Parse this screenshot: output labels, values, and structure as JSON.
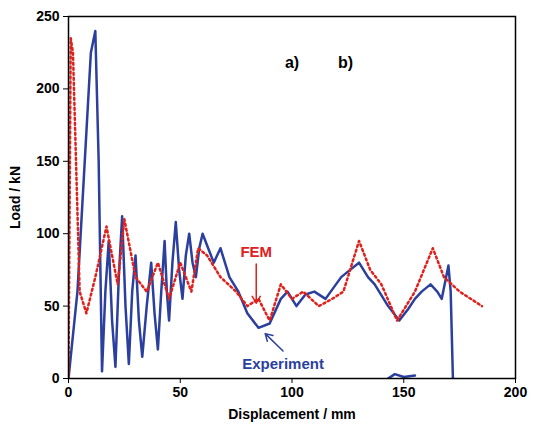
{
  "chart_data": {
    "type": "line",
    "x_label": "Displacement / mm",
    "y_label": "Load / kN",
    "xlim": [
      0,
      200
    ],
    "ylim": [
      0,
      250
    ],
    "xticks": [
      0,
      50,
      100,
      150,
      200
    ],
    "yticks": [
      0,
      50,
      100,
      150,
      200,
      250
    ],
    "grid": false,
    "series": [
      {
        "name": "Experiment",
        "color": "#2b3f9e",
        "line_style": "solid",
        "x": [
          0,
          4,
          8,
          10,
          12,
          13.5,
          15,
          16.5,
          18,
          19.5,
          21,
          22.5,
          24,
          25.5,
          27,
          28.5,
          30,
          31.5,
          33,
          35,
          37,
          38.5,
          40,
          41.5,
          43,
          44,
          45,
          46.5,
          48,
          49.5,
          51,
          52.5,
          54,
          55.5,
          57,
          58.5,
          60,
          62.5,
          65,
          68,
          72,
          76,
          80,
          85,
          90,
          95,
          98,
          102,
          106,
          110,
          115,
          122,
          126,
          130,
          134,
          137,
          143,
          148,
          152,
          155,
          158,
          162,
          165,
          167,
          170,
          171,
          172,
          null,
          143,
          146,
          150,
          155
        ],
        "values": [
          0,
          60,
          170,
          225,
          240,
          150,
          5,
          60,
          95,
          40,
          8,
          70,
          112,
          50,
          10,
          60,
          85,
          40,
          15,
          50,
          80,
          45,
          20,
          60,
          95,
          60,
          40,
          80,
          108,
          75,
          55,
          85,
          100,
          80,
          70,
          90,
          100,
          90,
          80,
          90,
          70,
          60,
          45,
          35,
          38,
          55,
          60,
          50,
          58,
          60,
          55,
          70,
          75,
          80,
          70,
          65,
          50,
          40,
          48,
          55,
          60,
          65,
          60,
          55,
          78,
          60,
          0,
          null,
          0,
          3,
          1,
          2
        ]
      },
      {
        "name": "FEM",
        "color": "#e0201b",
        "line_style": "dotted",
        "x": [
          0,
          1,
          2,
          5,
          8,
          12,
          17,
          22,
          25,
          30,
          35,
          40,
          45,
          50,
          55,
          58,
          62,
          68,
          75,
          80,
          85,
          90,
          95,
          100,
          105,
          112,
          118,
          123,
          130,
          135,
          140,
          147,
          155,
          163,
          168,
          175,
          185
        ],
        "values": [
          0,
          235,
          225,
          60,
          45,
          70,
          105,
          65,
          110,
          70,
          60,
          80,
          55,
          80,
          60,
          90,
          85,
          70,
          60,
          50,
          55,
          40,
          65,
          55,
          60,
          50,
          55,
          60,
          95,
          75,
          65,
          40,
          60,
          90,
          70,
          60,
          50
        ]
      }
    ],
    "annotations": [
      {
        "text": "FEM",
        "x": 84,
        "y": 84,
        "target": [
          84,
          52
        ],
        "color": "#e0201b"
      },
      {
        "text": "Experiment",
        "x": 96,
        "y": 14,
        "target": [
          88,
          31
        ],
        "color": "#2b3f9e"
      },
      {
        "text": "a)",
        "x": 100,
        "y": 222,
        "color": "#000000"
      },
      {
        "text": "b)",
        "x": 124,
        "y": 222,
        "color": "#000000"
      }
    ]
  }
}
